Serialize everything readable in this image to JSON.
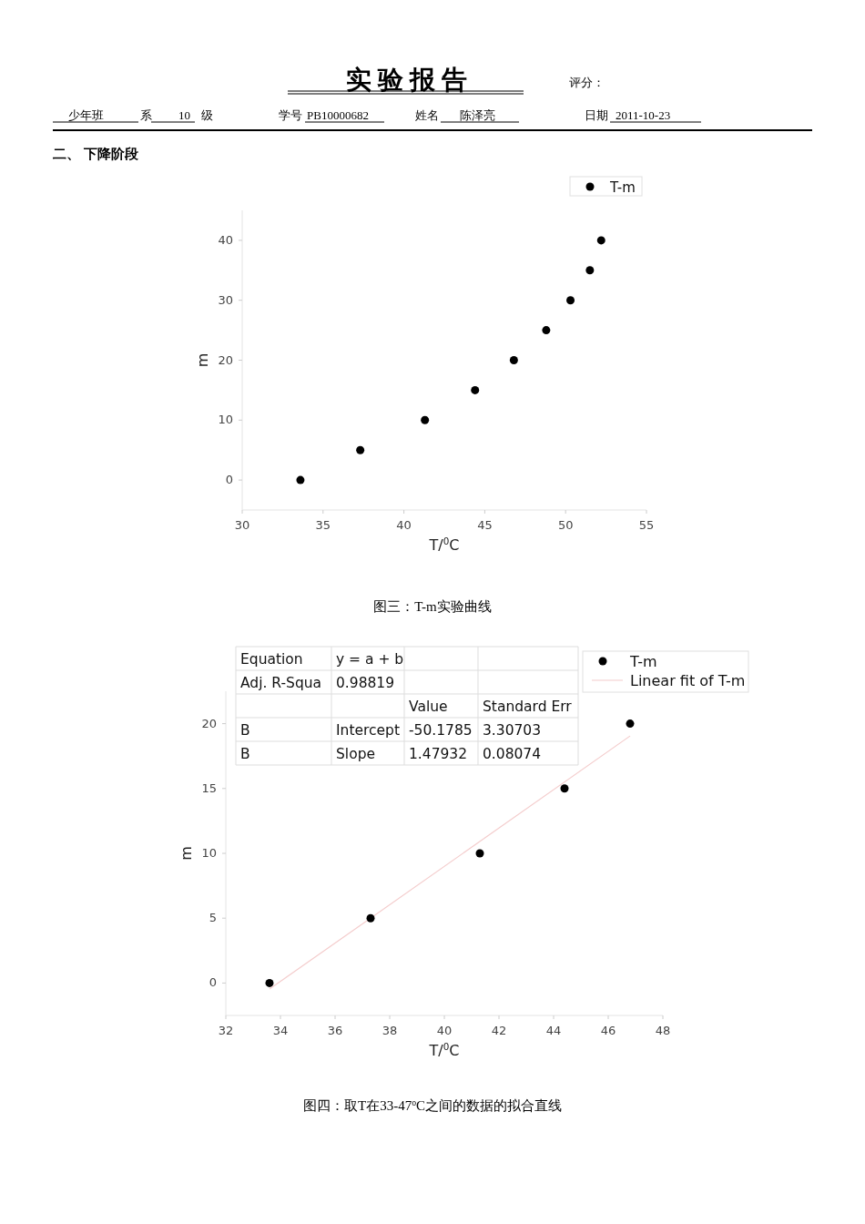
{
  "chart_data": [
    {
      "type": "scatter",
      "title": "实 验 报 告",
      "subtitle": "二、 下降阶段",
      "xlabel": "T/$^{0}$C",
      "ylabel": "m",
      "annotations": [
        "评分：",
        "少年班",
        "系",
        "10",
        "级",
        "学号",
        "PB10000682",
        "姓名",
        "陈泽亮",
        "日期",
        "2011-10-23",
        "图三：T-m实验曲线"
      ],
      "series": [
        {
          "name": "T-m",
          "color": "#000000",
          "marker": "circle",
          "x": [
            33.6,
            37.3,
            41.3,
            44.4,
            46.8,
            48.8,
            50.3,
            51.5,
            52.2
          ],
          "values": [
            0,
            5,
            10,
            15,
            20,
            25,
            30,
            35,
            40
          ]
        }
      ],
      "xlim": [
        30,
        55
      ],
      "ylim": [
        -5,
        45
      ],
      "xticks": [
        30,
        35,
        40,
        45,
        50,
        55
      ],
      "yticks": [
        0,
        10,
        20,
        30,
        40
      ],
      "legend": "top right"
    },
    {
      "type": "scatter",
      "xlabel": "T/$^{0}$C",
      "ylabel": "m",
      "annotations": [
        "图四：取T在33-47$^{o}$C之间的数据的拟合直线",
        "Equation",
        "y = a + b",
        "Adj. R-Squa",
        "0.98819",
        "Value",
        "Standard Err",
        "B",
        "Intercept",
        "-50.1785",
        "3.30703",
        "B",
        "Slope",
        "1.47932",
        "0.08074"
      ],
      "series": [
        {
          "name": "T-m",
          "color": "#000000",
          "marker": "circle",
          "x": [
            33.6,
            37.3,
            41.3,
            44.4,
            46.8
          ],
          "values": [
            0,
            5,
            10,
            15,
            20
          ]
        },
        {
          "name": "Linear fit of T-m",
          "type": "line",
          "marker": "none",
          "color": "#f4cccc",
          "x": [
            33.6,
            46.8
          ],
          "values": [
            -0.47,
            19.05
          ]
        }
      ],
      "xlim": [
        32,
        48
      ],
      "ylim": [
        -2.5,
        22.5
      ],
      "xticks": [
        32,
        34,
        36,
        38,
        40,
        42,
        44,
        46,
        48
      ],
      "yticks": [
        0,
        5,
        10,
        15,
        20
      ],
      "legend": "top right"
    }
  ]
}
